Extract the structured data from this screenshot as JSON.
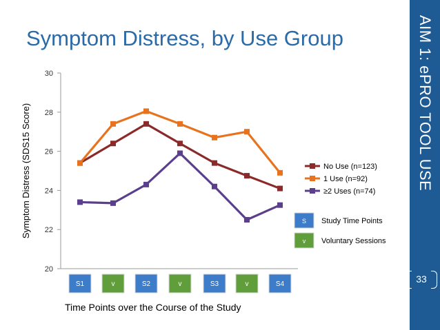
{
  "slide": {
    "title": "Symptom Distress, by Use Group",
    "side_title": "AIM 1: ePRO TOOL USE",
    "page_number": "33",
    "accent_color": "#1e5a93",
    "title_color": "#2a6aa8"
  },
  "chart_data": {
    "type": "line",
    "xlabel": "Time Points over the Course of the Study",
    "ylabel": "Symptom Distress (SDS15 Score)",
    "ylim": [
      20,
      30
    ],
    "yticks": [
      "20",
      "22",
      "24",
      "26",
      "28",
      "30"
    ],
    "categories": [
      "S1",
      "v",
      "S2",
      "v",
      "S3",
      "v",
      "S4"
    ],
    "category_kinds": [
      "study",
      "voluntary",
      "study",
      "voluntary",
      "study",
      "voluntary",
      "study"
    ],
    "grid": false,
    "legend_position": "right",
    "series": [
      {
        "name": "No Use (n=123)",
        "color": "#8b2a2a",
        "values": [
          25.4,
          26.4,
          27.4,
          26.4,
          25.4,
          24.75,
          24.1
        ]
      },
      {
        "name": "1 Use (n=92)",
        "color": "#e8731e",
        "values": [
          25.4,
          27.4,
          28.05,
          27.4,
          26.7,
          27.0,
          24.9
        ]
      },
      {
        "name": "≥2 Uses (n=74)",
        "color": "#5b3f8c",
        "values": [
          23.4,
          23.35,
          24.3,
          25.9,
          24.2,
          22.5,
          23.25
        ]
      }
    ],
    "key": [
      {
        "symbol": "S",
        "label": "Study Time Points",
        "color": "#3d7cc9"
      },
      {
        "symbol": "v",
        "label": "Voluntary Sessions",
        "color": "#5f9e3a"
      }
    ]
  }
}
